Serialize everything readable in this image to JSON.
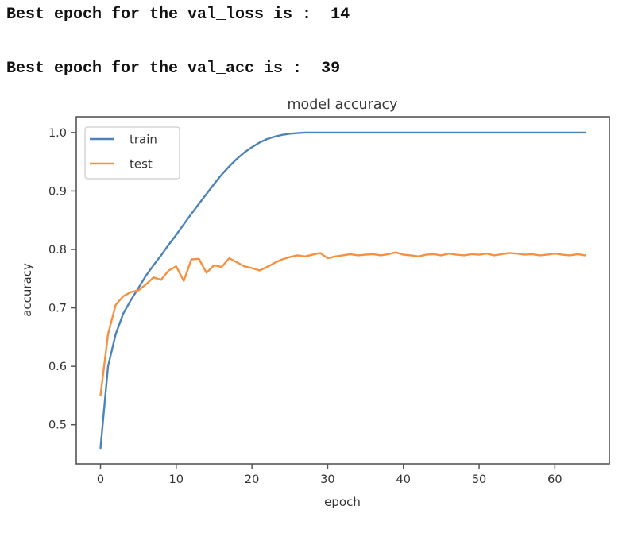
{
  "console": {
    "line1": "Best epoch for the val_loss is :  14",
    "line2": "Best epoch for the val_acc is :  39"
  },
  "chart_data": {
    "type": "line",
    "title": "model accuracy",
    "xlabel": "epoch",
    "ylabel": "accuracy",
    "x_ticks": [
      0,
      10,
      20,
      30,
      40,
      50,
      60
    ],
    "y_ticks": [
      0.5,
      0.6,
      0.7,
      0.8,
      0.9,
      1.0
    ],
    "xlim": [
      -3.2,
      67.2
    ],
    "ylim": [
      0.433,
      1.027
    ],
    "grid": false,
    "legend_position": "upper left",
    "colors": {
      "spine": "#555555",
      "tick": "#333333",
      "title": "#3a3a3a",
      "label": "#333333"
    },
    "x": [
      0,
      1,
      2,
      3,
      4,
      5,
      6,
      7,
      8,
      9,
      10,
      11,
      12,
      13,
      14,
      15,
      16,
      17,
      18,
      19,
      20,
      21,
      22,
      23,
      24,
      25,
      26,
      27,
      28,
      29,
      30,
      31,
      32,
      33,
      34,
      35,
      36,
      37,
      38,
      39,
      40,
      41,
      42,
      43,
      44,
      45,
      46,
      47,
      48,
      49,
      50,
      51,
      52,
      53,
      54,
      55,
      56,
      57,
      58,
      59,
      60,
      61,
      62,
      63,
      64
    ],
    "series": [
      {
        "name": "train",
        "color": "#4c84ba",
        "values": [
          0.46,
          0.6,
          0.655,
          0.69,
          0.713,
          0.734,
          0.755,
          0.773,
          0.79,
          0.808,
          0.825,
          0.843,
          0.861,
          0.878,
          0.895,
          0.912,
          0.928,
          0.942,
          0.955,
          0.966,
          0.975,
          0.983,
          0.989,
          0.993,
          0.996,
          0.998,
          0.999,
          1.0,
          1.0,
          1.0,
          1.0,
          1.0,
          1.0,
          1.0,
          1.0,
          1.0,
          1.0,
          1.0,
          1.0,
          1.0,
          1.0,
          1.0,
          1.0,
          1.0,
          1.0,
          1.0,
          1.0,
          1.0,
          1.0,
          1.0,
          1.0,
          1.0,
          1.0,
          1.0,
          1.0,
          1.0,
          1.0,
          1.0,
          1.0,
          1.0,
          1.0,
          1.0,
          1.0,
          1.0,
          1.0
        ]
      },
      {
        "name": "test",
        "color": "#f59140",
        "values": [
          0.55,
          0.655,
          0.705,
          0.72,
          0.727,
          0.73,
          0.74,
          0.752,
          0.748,
          0.764,
          0.771,
          0.746,
          0.783,
          0.784,
          0.76,
          0.773,
          0.77,
          0.785,
          0.778,
          0.771,
          0.768,
          0.764,
          0.77,
          0.777,
          0.783,
          0.787,
          0.79,
          0.788,
          0.791,
          0.794,
          0.785,
          0.788,
          0.79,
          0.792,
          0.79,
          0.791,
          0.792,
          0.79,
          0.792,
          0.795,
          0.791,
          0.79,
          0.788,
          0.791,
          0.792,
          0.79,
          0.793,
          0.791,
          0.79,
          0.792,
          0.791,
          0.793,
          0.79,
          0.792,
          0.794,
          0.793,
          0.791,
          0.792,
          0.79,
          0.791,
          0.793,
          0.791,
          0.79,
          0.792,
          0.79
        ]
      }
    ]
  }
}
